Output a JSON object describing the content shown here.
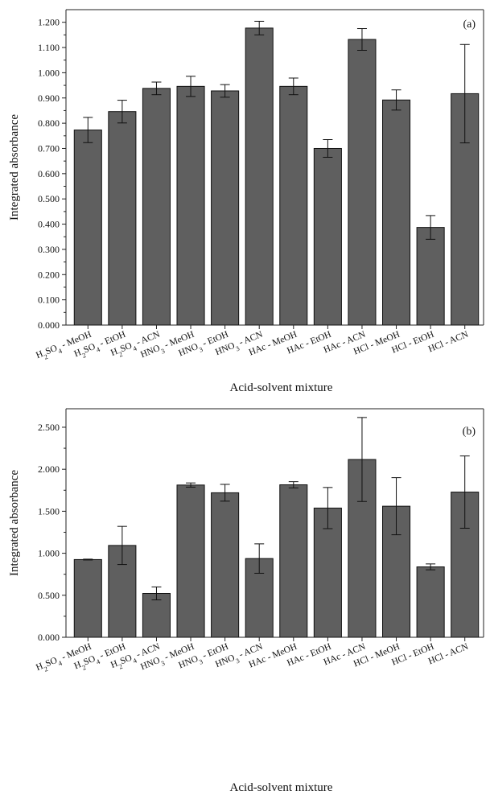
{
  "chart_data": [
    {
      "type": "bar",
      "panel_label": "(a)",
      "xlabel": "Acid-solvent mixture",
      "ylabel": "Integrated absorbance",
      "ylim": [
        0,
        1.25
      ],
      "yticks": [
        "0.000",
        "0.100",
        "0.200",
        "0.300",
        "0.400",
        "0.500",
        "0.600",
        "0.700",
        "0.800",
        "0.900",
        "1.000",
        "1.100",
        "1.200"
      ],
      "categories": [
        {
          "acid": "H",
          "acid_sub": "2",
          "acid_mid": "SO",
          "acid_sub2": "4",
          "solvent": " - MeOH"
        },
        {
          "acid": "H",
          "acid_sub": "2",
          "acid_mid": "SO",
          "acid_sub2": "4",
          "solvent": " - EtOH"
        },
        {
          "acid": "H",
          "acid_sub": "2",
          "acid_mid": "SO",
          "acid_sub2": "4",
          "solvent": " - ACN"
        },
        {
          "acid": "HNO",
          "acid_sub": "3",
          "acid_mid": "",
          "acid_sub2": "",
          "solvent": " - MeOH"
        },
        {
          "acid": "HNO",
          "acid_sub": "3",
          "acid_mid": "",
          "acid_sub2": "",
          "solvent": " - EtOH"
        },
        {
          "acid": "HNO",
          "acid_sub": "3",
          "acid_mid": "",
          "acid_sub2": "",
          "solvent": " - ACN"
        },
        {
          "acid": "HAc",
          "acid_sub": "",
          "acid_mid": "",
          "acid_sub2": "",
          "solvent": " - MeOH"
        },
        {
          "acid": "HAc",
          "acid_sub": "",
          "acid_mid": "",
          "acid_sub2": "",
          "solvent": " - EtOH"
        },
        {
          "acid": "HAc",
          "acid_sub": "",
          "acid_mid": "",
          "acid_sub2": "",
          "solvent": " - ACN"
        },
        {
          "acid": "HCl",
          "acid_sub": "",
          "acid_mid": "",
          "acid_sub2": "",
          "solvent": " - MeOH"
        },
        {
          "acid": "HCl",
          "acid_sub": "",
          "acid_mid": "",
          "acid_sub2": "",
          "solvent": " - EtOH"
        },
        {
          "acid": "HCl",
          "acid_sub": "",
          "acid_mid": "",
          "acid_sub2": "",
          "solvent": " - ACN"
        }
      ],
      "values": [
        0.773,
        0.846,
        0.938,
        0.946,
        0.928,
        1.177,
        0.946,
        0.7,
        1.132,
        0.892,
        0.387,
        0.917
      ],
      "errors": [
        0.05,
        0.045,
        0.025,
        0.04,
        0.025,
        0.027,
        0.033,
        0.035,
        0.043,
        0.04,
        0.047,
        0.195
      ],
      "bar_color": "#5f5f5f"
    },
    {
      "type": "bar",
      "panel_label": "(b)",
      "xlabel": "Acid-solvent mixture",
      "ylabel": "Integrated absorbance",
      "ylim": [
        0,
        2.72
      ],
      "yticks": [
        "0.000",
        "0.500",
        "1.000",
        "1.500",
        "2.000",
        "2.500"
      ],
      "categories": [
        {
          "acid": "H",
          "acid_sub": "2",
          "acid_mid": "SO",
          "acid_sub2": "4",
          "solvent": " - MeOH"
        },
        {
          "acid": "H",
          "acid_sub": "2",
          "acid_mid": "SO",
          "acid_sub2": "4",
          "solvent": " - EtOH"
        },
        {
          "acid": "H",
          "acid_sub": "2",
          "acid_mid": "SO",
          "acid_sub2": "4",
          "solvent": " - ACN"
        },
        {
          "acid": "HNO",
          "acid_sub": "3",
          "acid_mid": "",
          "acid_sub2": "",
          "solvent": " - MeOH"
        },
        {
          "acid": "HNO",
          "acid_sub": "3",
          "acid_mid": "",
          "acid_sub2": "",
          "solvent": " - EtOH"
        },
        {
          "acid": "HNO",
          "acid_sub": "3",
          "acid_mid": "",
          "acid_sub2": "",
          "solvent": " - ACN"
        },
        {
          "acid": "HAc",
          "acid_sub": "",
          "acid_mid": "",
          "acid_sub2": "",
          "solvent": " - MeOH"
        },
        {
          "acid": "HAc",
          "acid_sub": "",
          "acid_mid": "",
          "acid_sub2": "",
          "solvent": " - EtOH"
        },
        {
          "acid": "HAc",
          "acid_sub": "",
          "acid_mid": "",
          "acid_sub2": "",
          "solvent": " - ACN"
        },
        {
          "acid": "HCl",
          "acid_sub": "",
          "acid_mid": "",
          "acid_sub2": "",
          "solvent": " - MeOH"
        },
        {
          "acid": "HCl",
          "acid_sub": "",
          "acid_mid": "",
          "acid_sub2": "",
          "solvent": " - EtOH"
        },
        {
          "acid": "HCl",
          "acid_sub": "",
          "acid_mid": "",
          "acid_sub2": "",
          "solvent": " - ACN"
        }
      ],
      "values": [
        0.925,
        1.093,
        0.522,
        1.812,
        1.72,
        0.937,
        1.815,
        1.538,
        2.116,
        1.56,
        0.838,
        1.728
      ],
      "errors": [
        0.005,
        0.227,
        0.077,
        0.025,
        0.1,
        0.175,
        0.037,
        0.245,
        0.5,
        0.34,
        0.035,
        0.43
      ],
      "bar_color": "#5f5f5f"
    }
  ]
}
